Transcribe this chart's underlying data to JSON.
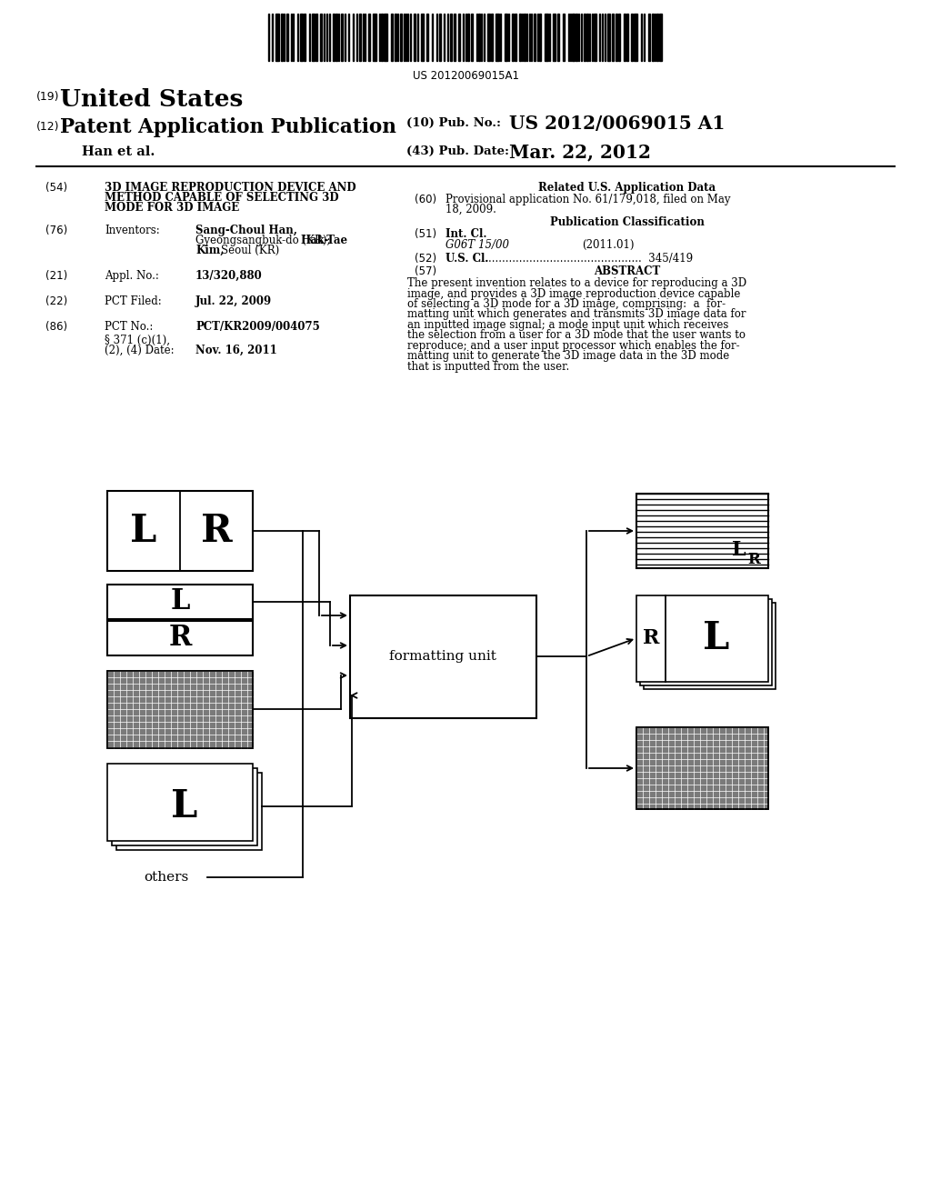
{
  "barcode_text": "US 20120069015A1",
  "header": {
    "country_label": "(19)",
    "country": "United States",
    "type_label": "(12)",
    "type": "Patent Application Publication",
    "pub_no_label": "(10) Pub. No.:",
    "pub_no": "US 2012/0069015 A1",
    "han_label": "Han et al.",
    "pub_date_label": "(43) Pub. Date:",
    "pub_date": "Mar. 22, 2012"
  },
  "left_col": {
    "title_num": "(54)",
    "title_line1": "3D IMAGE REPRODUCTION DEVICE AND",
    "title_line2": "METHOD CAPABLE OF SELECTING 3D",
    "title_line3": "MODE FOR 3D IMAGE",
    "inv_num": "(76)",
    "inv_label": "Inventors:",
    "inv_name1": "Sang-Choul Han,",
    "inv_name2": "Gyeongsangbuk-do (KR);",
    "inv_name2b": "Hak-Tae",
    "inv_name3": "Kim,",
    "inv_name3b": "Seoul (KR)",
    "appl_num": "(21)",
    "appl_label": "Appl. No.:",
    "appl_val": "13/320,880",
    "pct_filed_num": "(22)",
    "pct_filed_label": "PCT Filed:",
    "pct_filed_val": "Jul. 22, 2009",
    "pct_no_num": "(86)",
    "pct_no_label": "PCT No.:",
    "pct_no_val": "PCT/KR2009/004075",
    "par371_line1": "§ 371 (c)(1),",
    "par371_line2": "(2), (4) Date:",
    "par371_val": "Nov. 16, 2011"
  },
  "right_col": {
    "related_hdr": "Related U.S. Application Data",
    "prov_num": "(60)",
    "prov_line1": "Provisional application No. 61/179,018, filed on May",
    "prov_line2": "18, 2009.",
    "pub_class_hdr": "Publication Classification",
    "int_cl_num": "(51)",
    "int_cl_label": "Int. Cl.",
    "int_cl_class": "G06T 15/00",
    "int_cl_date": "(2011.01)",
    "us_cl_num": "(52)",
    "us_cl_label": "U.S. Cl.",
    "us_cl_val": "345/419",
    "abstract_num": "(57)",
    "abstract_hdr": "ABSTRACT",
    "abstract_line1": "The present invention relates to a device for reproducing a 3D",
    "abstract_line2": "image, and provides a 3D image reproduction device capable",
    "abstract_line3": "of selecting a 3D mode for a 3D image, comprising:  a  for-",
    "abstract_line4": "matting unit which generates and transmits 3D image data for",
    "abstract_line5": "an inputted image signal; a mode input unit which receives",
    "abstract_line6": "the selection from a user for a 3D mode that the user wants to",
    "abstract_line7": "reproduce; and a user input processor which enables the for-",
    "abstract_line8": "matting unit to generate the 3D image data in the 3D mode",
    "abstract_line9": "that is inputted from the user."
  }
}
